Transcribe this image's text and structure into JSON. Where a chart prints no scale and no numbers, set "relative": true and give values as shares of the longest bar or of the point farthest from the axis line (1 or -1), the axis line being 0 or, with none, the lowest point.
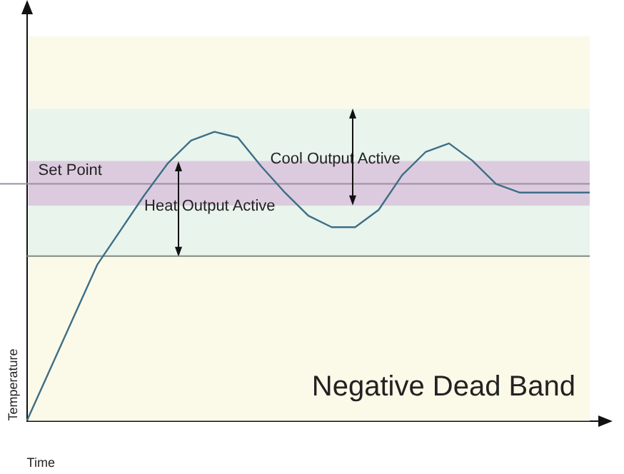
{
  "chart_data": {
    "type": "line",
    "relative": true,
    "xlabel": "Time",
    "ylabel": "Temperature",
    "legend": false,
    "grid": false,
    "marker": "none",
    "line_style": "solid",
    "categories": [
      null,
      null,
      null,
      null,
      null,
      null,
      null,
      null,
      null,
      null,
      null,
      null,
      null,
      null,
      null,
      null,
      null,
      null,
      null,
      null,
      null,
      null,
      null,
      null,
      null
    ],
    "series": [
      {
        "color": "#3d6e86",
        "values": [
          0,
          0.18,
          0.36,
          0.54,
          0.66,
          0.78,
          0.89,
          0.97,
          1,
          0.98,
          0.88,
          0.79,
          0.71,
          0.67,
          0.67,
          0.73,
          0.85,
          0.93,
          0.96,
          0.9,
          0.82,
          0.79,
          0.79,
          0.79,
          0.79
        ]
      }
    ],
    "bands": [
      {
        "axis": "y",
        "from": 0,
        "to": 0.57,
        "color": "#fbf9e8"
      },
      {
        "axis": "y",
        "from": 0.57,
        "to": 0.745,
        "color": "#e8f4ec"
      },
      {
        "axis": "y",
        "from": 0.745,
        "to": 0.9,
        "color": "#dccbdf"
      },
      {
        "axis": "y",
        "from": 0.9,
        "to": 1.08,
        "color": "#e8f4ec"
      },
      {
        "axis": "y",
        "from": 1.08,
        "to": 1.33,
        "color": "#fbf9e8"
      }
    ],
    "ref_lines": [
      {
        "axis": "y",
        "value": 0.82,
        "label": "Set Point",
        "color": "#9a8fa0"
      },
      {
        "axis": "y",
        "value": 0.57,
        "color": "#7f8a86"
      }
    ],
    "annotations": [
      "Cool Output Active",
      "Heat Output Active",
      "Negative Dead Band"
    ]
  }
}
